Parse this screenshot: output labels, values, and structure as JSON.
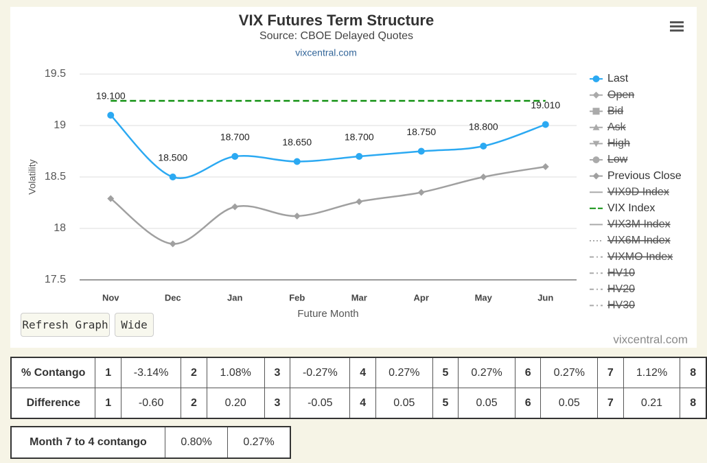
{
  "chart_data": {
    "type": "line",
    "title": "VIX Futures Term Structure",
    "subtitle": "Source: CBOE Delayed Quotes",
    "link": "vixcentral.com",
    "credits": "vixcentral.com",
    "y_label": "Volatility",
    "x_label": "Future Month",
    "categories": [
      "Nov",
      "Dec",
      "Jan",
      "Feb",
      "Mar",
      "Apr",
      "May",
      "Jun"
    ],
    "ylim": [
      17.5,
      19.5
    ],
    "yticks": [
      17.5,
      18,
      18.5,
      19,
      19.5
    ],
    "grid": true,
    "legend": "right",
    "series": [
      {
        "name": "Last",
        "color": "#2ba9f2",
        "symbol": "circle",
        "values": [
          19.1,
          18.5,
          18.7,
          18.65,
          18.7,
          18.75,
          18.8,
          19.01
        ],
        "value_labels": [
          "19.100",
          "18.500",
          "18.700",
          "18.650",
          "18.700",
          "18.750",
          "18.800",
          "19.010"
        ]
      },
      {
        "name": "Open",
        "symbol": "diamond",
        "hidden": true
      },
      {
        "name": "Bid",
        "symbol": "square",
        "hidden": true
      },
      {
        "name": "Ask",
        "symbol": "triangle",
        "hidden": true
      },
      {
        "name": "High",
        "symbol": "triangle-down",
        "hidden": true
      },
      {
        "name": "Low",
        "symbol": "circle",
        "hidden": true
      },
      {
        "name": "Previous Close",
        "color": "#a0a0a0",
        "symbol": "diamond",
        "values": [
          18.29,
          17.85,
          18.21,
          18.12,
          18.26,
          18.35,
          18.5,
          18.6
        ]
      },
      {
        "name": "VIX9D Index",
        "symbol": "none",
        "hidden": true
      },
      {
        "name": "VIX Index",
        "color": "#109010",
        "symbol": "none",
        "dash": "dash",
        "values": [
          19.24,
          19.24,
          19.24,
          19.24,
          19.24,
          19.24,
          19.24,
          19.24
        ]
      },
      {
        "name": "VIX3M Index",
        "symbol": "none",
        "hidden": true
      },
      {
        "name": "VIX6M Index",
        "symbol": "none",
        "dash": "dot",
        "hidden": true
      },
      {
        "name": "VIXMO Index",
        "symbol": "none",
        "dash": "dashdot",
        "hidden": true
      },
      {
        "name": "HV10",
        "symbol": "none",
        "dash": "dashdot",
        "hidden": true
      },
      {
        "name": "HV20",
        "symbol": "none",
        "dash": "dashdot",
        "hidden": true
      },
      {
        "name": "HV30",
        "symbol": "none",
        "dash": "dashdot",
        "hidden": true
      }
    ]
  },
  "buttons": [
    "Refresh Graph",
    "Wide"
  ],
  "tables": [
    {
      "rows": [
        [
          "% Contango",
          "1",
          "-3.14%",
          "2",
          "1.08%",
          "3",
          "-0.27%",
          "4",
          "0.27%",
          "5",
          "0.27%",
          "6",
          "0.27%",
          "7",
          "1.12%",
          "8"
        ],
        [
          "Difference",
          "1",
          "-0.60",
          "2",
          "0.20",
          "3",
          "-0.05",
          "4",
          "0.05",
          "5",
          "0.05",
          "6",
          "0.05",
          "7",
          "0.21",
          "8"
        ]
      ]
    },
    {
      "rows": [
        [
          "Month 7 to 4 contango",
          "0.80%",
          "0.27%"
        ]
      ]
    }
  ]
}
